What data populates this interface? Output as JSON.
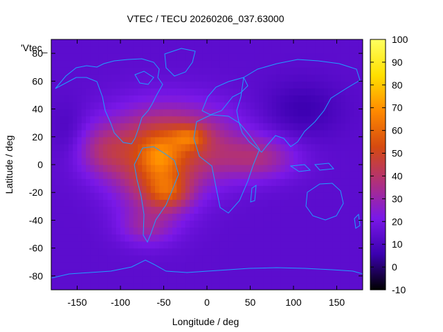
{
  "chart_data": {
    "type": "heatmap",
    "title": "VTEC / TECU 20260206_037.63000",
    "xlabel": "Longitude / deg",
    "ylabel": "Latitude / deg",
    "series_label": "'Vtec_",
    "xlim": [
      -180,
      180
    ],
    "ylim": [
      -90,
      90
    ],
    "x_ticks": [
      -150,
      -100,
      -50,
      0,
      50,
      100,
      150
    ],
    "y_ticks": [
      -80,
      -60,
      -40,
      -20,
      0,
      20,
      40,
      60,
      80
    ],
    "colorbar": {
      "range": [
        -10,
        100
      ],
      "ticks": [
        -10,
        0,
        10,
        20,
        30,
        40,
        50,
        60,
        70,
        80,
        90,
        100
      ],
      "palette": [
        "#000000",
        "#3b00b0",
        "#7a18e8",
        "#b0307c",
        "#d54a10",
        "#ff8a00",
        "#ffe000",
        "#ffff60"
      ]
    },
    "background_vtec": 14,
    "blobs": [
      {
        "lon": -40,
        "lat": 15,
        "vtec": 32,
        "sigma_lon": 75,
        "sigma_lat": 28
      },
      {
        "lon": -60,
        "lat": -10,
        "vtec": 22,
        "sigma_lon": 45,
        "sigma_lat": 32
      },
      {
        "lon": -45,
        "lat": -20,
        "vtec": 22,
        "sigma_lon": 25,
        "sigma_lat": 12
      },
      {
        "lon": -20,
        "lat": 20,
        "vtec": 18,
        "sigma_lon": 20,
        "sigma_lat": 8
      },
      {
        "lon": -55,
        "lat": 5,
        "vtec": 12,
        "sigma_lon": 20,
        "sigma_lat": 15
      },
      {
        "lon": 60,
        "lat": 5,
        "vtec": 18,
        "sigma_lon": 45,
        "sigma_lat": 15
      },
      {
        "lon": -120,
        "lat": 10,
        "vtec": 14,
        "sigma_lon": 30,
        "sigma_lat": 18
      },
      {
        "lon": -70,
        "lat": -45,
        "vtec": 12,
        "sigma_lon": 30,
        "sigma_lat": 12
      },
      {
        "lon": 110,
        "lat": 40,
        "vtec": -8,
        "sigma_lon": 45,
        "sigma_lat": 20
      },
      {
        "lon": -160,
        "lat": 25,
        "vtec": -5,
        "sigma_lon": 20,
        "sigma_lat": 20
      }
    ]
  }
}
